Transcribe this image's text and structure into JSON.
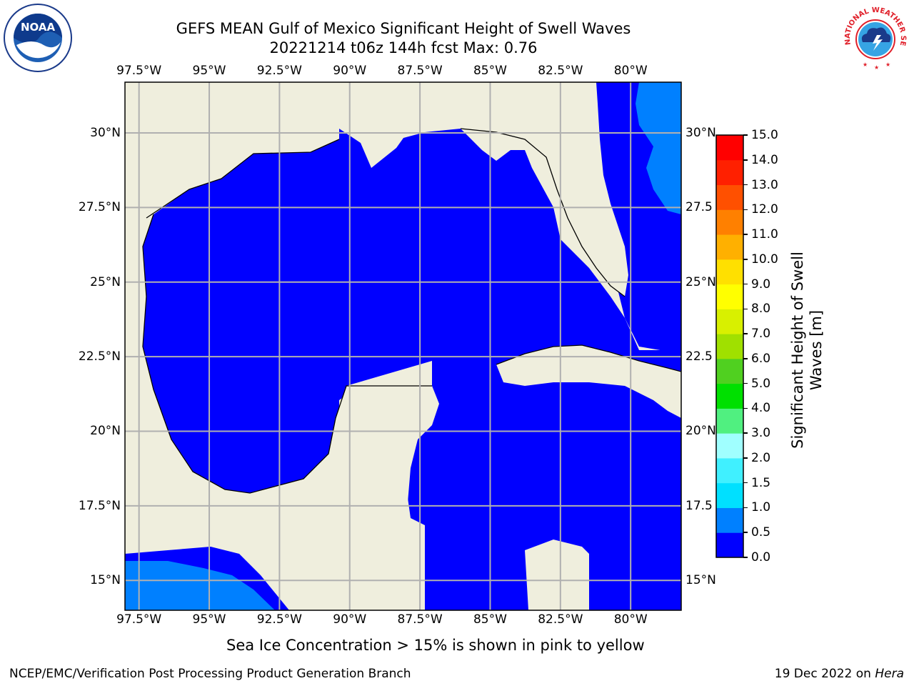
{
  "title": {
    "line1": "GEFS MEAN Gulf of Mexico Significant Height of Swell Waves",
    "line2": "20221214 t06z 144h fcst   Max: 0.76"
  },
  "logos": {
    "left": "NOAA",
    "right": "NATIONAL WEATHER SERVICE"
  },
  "map": {
    "lon_range": [
      -98,
      -78.2
    ],
    "lat_range": [
      14,
      31.7
    ],
    "lon_labels": [
      "97.5°W",
      "95°W",
      "92.5°W",
      "90°W",
      "87.5°W",
      "85°W",
      "82.5°W",
      "80°W"
    ],
    "lon_values": [
      -97.5,
      -95,
      -92.5,
      -90,
      -87.5,
      -85,
      -82.5,
      -80
    ],
    "lat_labels": [
      "30°N",
      "27.5°N",
      "25°N",
      "22.5°N",
      "20°N",
      "17.5°N",
      "15°N"
    ],
    "lat_values": [
      30,
      27.5,
      25,
      22.5,
      20,
      17.5,
      15
    ],
    "right_lat_labels": [
      "30°N",
      "27.5",
      "25°N",
      "22.5",
      "20°N",
      "17.5",
      "15°N"
    ],
    "colors": {
      "land": "#efeedd",
      "ocean_low": "#0000ff",
      "ocean_mid": "#0080ff",
      "grid": "#b0b0b0"
    }
  },
  "colorbar": {
    "label": "Significant Height of Swell Waves [m]",
    "label_line1": "Significant Height of Swell",
    "label_line2": "Waves [m]",
    "levels": [
      "0.0",
      "0.5",
      "1.0",
      "1.5",
      "2.0",
      "3.0",
      "4.0",
      "5.0",
      "6.0",
      "7.0",
      "8.0",
      "9.0",
      "10.0",
      "11.0",
      "12.0",
      "13.0",
      "14.0",
      "15.0"
    ],
    "colors": [
      "#0000ff",
      "#0080ff",
      "#00e0ff",
      "#40f0ff",
      "#a0ffff",
      "#50f080",
      "#00e000",
      "#50d020",
      "#a0e000",
      "#d8f000",
      "#ffff00",
      "#ffe000",
      "#ffb000",
      "#ff8000",
      "#ff5000",
      "#ff2000",
      "#ff0000"
    ]
  },
  "note": "Sea Ice Concentration > 15% is shown in pink to yellow",
  "footer": {
    "left": "NCEP/EMC/Verification Post Processing Product Generation Branch",
    "right_date": "19 Dec 2022 on ",
    "right_machine": "Hera"
  }
}
